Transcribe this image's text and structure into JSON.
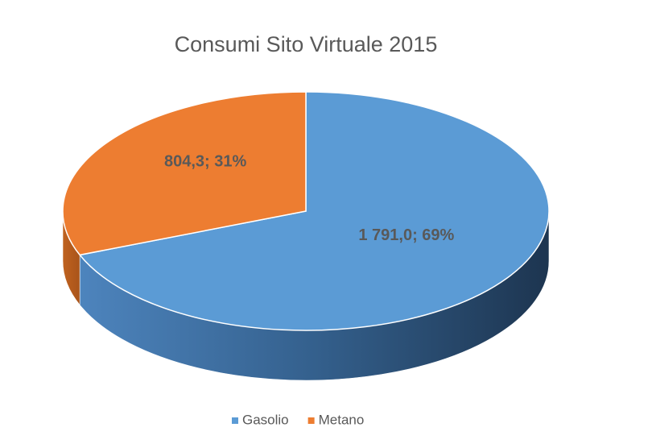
{
  "chart_data": {
    "type": "pie3d",
    "title": "Consumi Sito Virtuale 2015",
    "categories": [
      "Gasolio",
      "Metano"
    ],
    "values": [
      1791.0,
      804.3
    ],
    "value_labels": [
      "1 791,0; 69%",
      "804,3; 31%"
    ],
    "colors": [
      "#5b9bd5",
      "#ed7d31"
    ],
    "legend": "bottom"
  }
}
